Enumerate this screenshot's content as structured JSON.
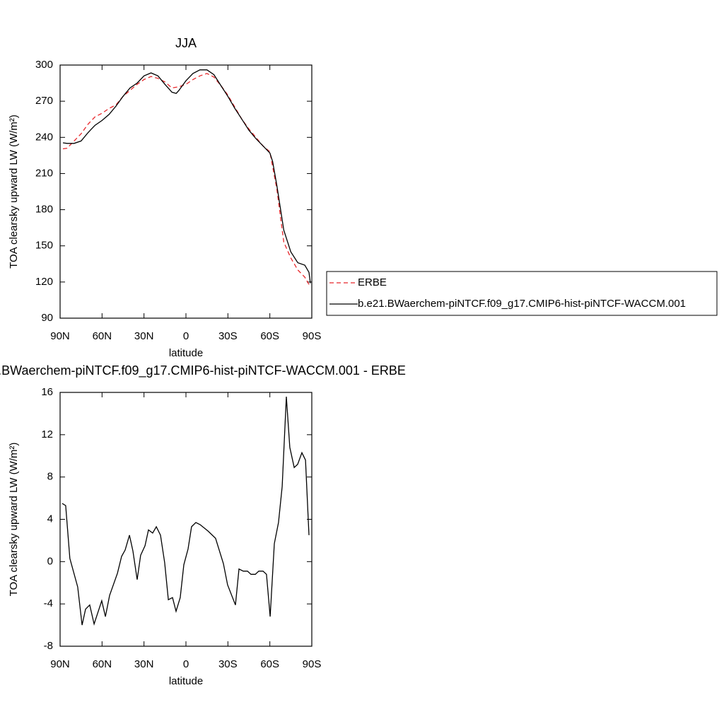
{
  "chart_data": [
    {
      "type": "line",
      "title": "JJA",
      "x_label": "latitude",
      "y_label": "TOA clearsky upward LW (W/m²)",
      "xlim": [
        90,
        -90
      ],
      "xticks": [
        {
          "value": 90,
          "label": "90N"
        },
        {
          "value": 60,
          "label": "60N"
        },
        {
          "value": 30,
          "label": "30N"
        },
        0,
        {
          "value": -30,
          "label": "30S"
        },
        {
          "value": -60,
          "label": "60S"
        },
        {
          "value": -90,
          "label": "90S"
        }
      ],
      "ylim": [
        90,
        300
      ],
      "yticks": [
        90,
        120,
        150,
        180,
        210,
        240,
        270,
        300
      ],
      "legend": "right",
      "series": [
        {
          "name": "ERBE",
          "color": "#e8262a",
          "line_style": "dashed",
          "x": [
            88,
            85,
            80,
            75,
            70,
            65,
            60,
            55,
            50,
            45,
            40,
            35,
            30,
            25,
            20,
            15,
            10,
            5,
            0,
            -5,
            -10,
            -15,
            -20,
            -25,
            -30,
            -35,
            -40,
            -45,
            -50,
            -55,
            -60,
            -65,
            -70,
            -75,
            -80,
            -85,
            -88
          ],
          "values": [
            230.5,
            231,
            237,
            243,
            251,
            257,
            260,
            264,
            267,
            274,
            279,
            284,
            288,
            290.5,
            289,
            286,
            281,
            282,
            284,
            288,
            291,
            293,
            290,
            283,
            275,
            265,
            255,
            247,
            240,
            233,
            228,
            197,
            153,
            140,
            130,
            124,
            118
          ]
        },
        {
          "name": "b.e21.BWaerchem-piNTCF.f09_g17.CMIP6-hist-piNTCF-WACCM.001",
          "color": "#000000",
          "line_style": "solid",
          "x": [
            88,
            85,
            80,
            75,
            70,
            65,
            60,
            55,
            50,
            45,
            40,
            35,
            30,
            25,
            20,
            15,
            10,
            7,
            5,
            0,
            -5,
            -10,
            -15,
            -20,
            -25,
            -30,
            -35,
            -40,
            -45,
            -50,
            -55,
            -60,
            -62,
            -65,
            -70,
            -75,
            -80,
            -85,
            -88,
            -89
          ],
          "values": [
            235.5,
            235,
            235,
            237,
            244,
            250,
            254,
            259,
            266,
            274,
            281,
            285,
            291,
            293.5,
            291,
            284,
            277.5,
            276.5,
            279,
            287,
            293,
            296,
            296,
            292,
            283,
            274,
            264,
            255,
            246,
            239,
            233,
            227,
            220,
            200,
            163,
            145,
            136,
            134,
            128,
            119
          ]
        }
      ]
    },
    {
      "type": "line",
      "title": "b.e21.BWaerchem-piNTCF.f09_g17.CMIP6-hist-piNTCF-WACCM.001 - ERBE",
      "x_label": "latitude",
      "y_label": "TOA clearsky upward LW (W/m²)",
      "xlim": [
        90,
        -90
      ],
      "xticks": [
        {
          "value": 90,
          "label": "90N"
        },
        {
          "value": 60,
          "label": "60N"
        },
        {
          "value": 30,
          "label": "30N"
        },
        0,
        {
          "value": -30,
          "label": "30S"
        },
        {
          "value": -60,
          "label": "60S"
        },
        {
          "value": -90,
          "label": "90S"
        }
      ],
      "ylim": [
        -8,
        16
      ],
      "yticks": [
        -8,
        -4,
        0,
        4,
        8,
        12,
        16
      ],
      "color": "#000000",
      "x": [
        88.5,
        86,
        83,
        77.4,
        74.3,
        71.8,
        68.8,
        65.7,
        60.2,
        57.6,
        54.6,
        49,
        46,
        43.5,
        40.4,
        37.9,
        34.9,
        32.4,
        29.3,
        26.8,
        23.8,
        21.2,
        18.2,
        15.2,
        12.6,
        9.6,
        7.1,
        4.1,
        1.5,
        -1.5,
        -4,
        -7.1,
        -10.1,
        -15.7,
        -21.2,
        -26.8,
        -29.8,
        -35.4,
        -37.9,
        -41,
        -44,
        -46.5,
        -49.6,
        -52.1,
        -55.1,
        -57.6,
        -60.2,
        -63.2,
        -66.2,
        -68.8,
        -71.8,
        -74.3,
        -77.4,
        -79.9,
        -82.9,
        -85.5,
        -88
      ],
      "values": [
        5.5,
        5.3,
        0.3,
        -2.4,
        -6.0,
        -4.5,
        -4.1,
        -5.9,
        -3.7,
        -5.2,
        -3.2,
        -1.1,
        0.5,
        1.1,
        2.5,
        1.0,
        -1.7,
        0.6,
        1.5,
        3.0,
        2.7,
        3.3,
        2.5,
        -0.1,
        -3.6,
        -3.4,
        -4.7,
        -3.4,
        -0.3,
        1.2,
        3.3,
        3.7,
        3.5,
        2.9,
        2.2,
        -0.2,
        -2.2,
        -4.1,
        -0.7,
        -0.9,
        -0.9,
        -1.2,
        -1.2,
        -0.9,
        -0.9,
        -1.2,
        -5.2,
        1.7,
        3.7,
        7.1,
        15.6,
        10.8,
        8.9,
        9.2,
        10.3,
        9.6,
        2.5
      ]
    }
  ]
}
